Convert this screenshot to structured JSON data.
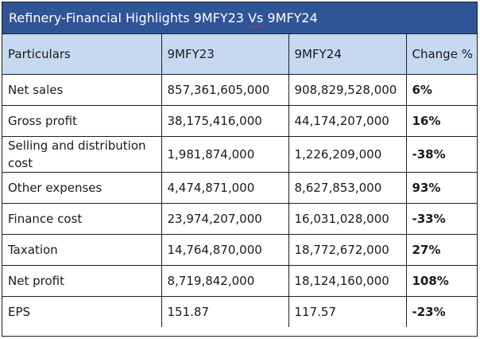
{
  "title": {
    "before": "Refinery-Financial Highlights 9MFY23 ",
    "vs": "Vs",
    "after": " 9MFY24"
  },
  "headers": [
    "Particulars",
    "9MFY23",
    "9MFY24",
    "Change %"
  ],
  "rows": [
    {
      "particular": "Net sales",
      "fy23": "857,361,605,000",
      "fy24": "908,829,528,000",
      "change": "6%"
    },
    {
      "particular": "Gross profit",
      "fy23": "38,175,416,000",
      "fy24": "44,174,207,000",
      "change": "16%"
    },
    {
      "particular": "Selling and distribution cost",
      "fy23": "1,981,874,000",
      "fy24": "1,226,209,000",
      "change": "-38%"
    },
    {
      "particular": "Other expenses",
      "fy23": "4,474,871,000",
      "fy24": "8,627,853,000",
      "change": "93%"
    },
    {
      "particular": "Finance cost",
      "fy23": "23,974,207,000",
      "fy24": "16,031,028,000",
      "change": "-33%"
    },
    {
      "particular": "Taxation",
      "fy23": "14,764,870,000",
      "fy24": "18,772,672,000",
      "change": "27%"
    },
    {
      "particular": "Net profit",
      "fy23": "8,719,842,000",
      "fy24": "18,124,160,000",
      "change": "108%"
    },
    {
      "particular": "EPS",
      "fy23": "151.87",
      "fy24": "117.57",
      "change": "-23%"
    }
  ]
}
